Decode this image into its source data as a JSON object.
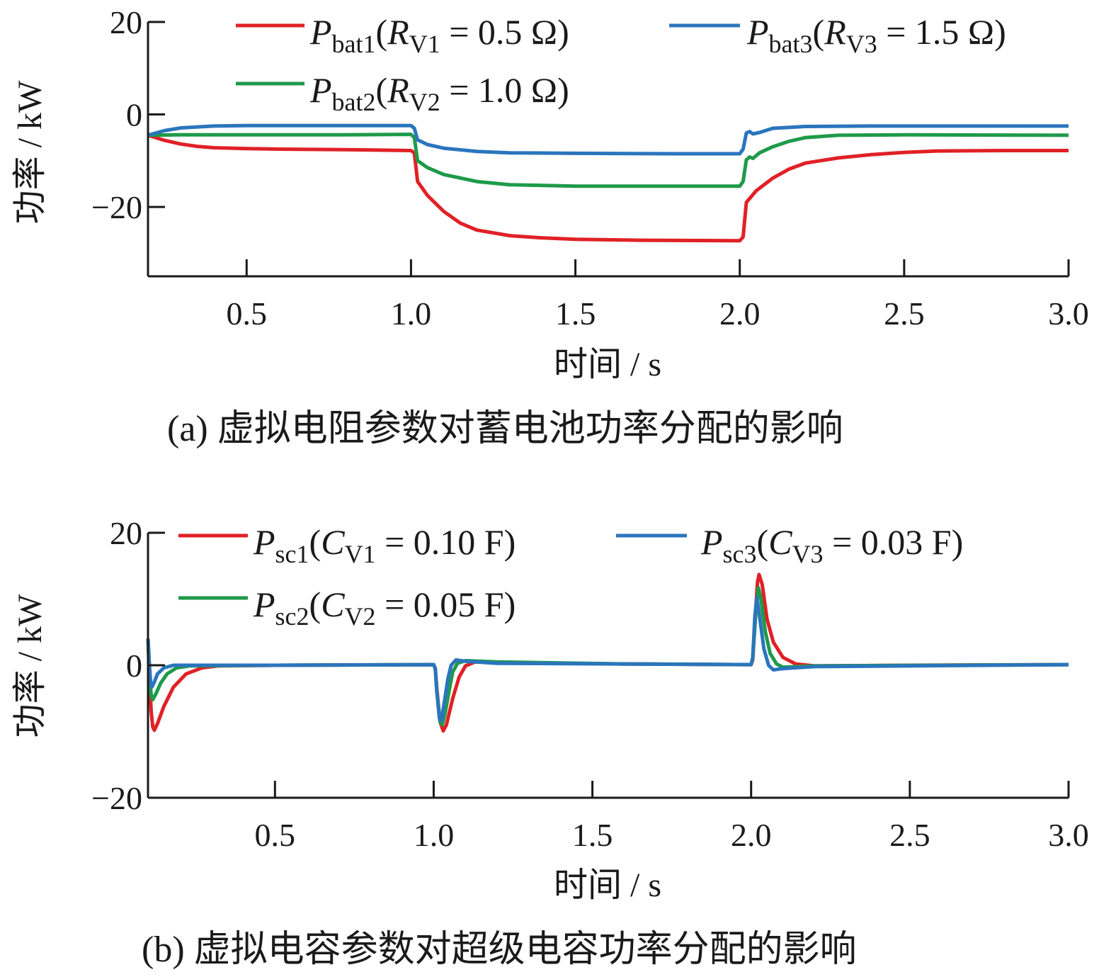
{
  "chart_data": [
    {
      "type": "line",
      "caption": "(a)  虚拟电阻参数对蓄电池功率分配的影响",
      "xlabel": "时间 / s",
      "ylabel": "功率 / kW",
      "xlim": [
        0.2,
        3.0
      ],
      "ylim": [
        -35,
        20
      ],
      "x_ticks": [
        0.5,
        1.0,
        1.5,
        2.0,
        2.5,
        3.0
      ],
      "x_tick_labels": [
        "0.5",
        "1.0",
        "1.5",
        "2.0",
        "2.5",
        "3.0"
      ],
      "y_ticks": [
        20,
        0,
        -20
      ],
      "y_tick_labels": [
        "20",
        "0",
        "−20"
      ],
      "legend_position": "top",
      "series": [
        {
          "name": "P_bat1(R_V1 = 0.5 Ω)",
          "legend": {
            "main": "P",
            "sub": "bat1",
            "open": "(R",
            "sub2": "V1",
            "rest": " = 0.5 Ω)"
          },
          "color": "#e02126",
          "points": [
            [
              0.2,
              -4.5
            ],
            [
              0.25,
              -5.6
            ],
            [
              0.3,
              -6.4
            ],
            [
              0.35,
              -6.9
            ],
            [
              0.4,
              -7.2
            ],
            [
              0.5,
              -7.4
            ],
            [
              0.6,
              -7.5
            ],
            [
              0.8,
              -7.6
            ],
            [
              1.0,
              -7.8
            ],
            [
              1.01,
              -8.3
            ],
            [
              1.02,
              -14.5
            ],
            [
              1.05,
              -17.5
            ],
            [
              1.1,
              -21.0
            ],
            [
              1.15,
              -23.5
            ],
            [
              1.2,
              -25.0
            ],
            [
              1.3,
              -26.2
            ],
            [
              1.4,
              -26.7
            ],
            [
              1.5,
              -27.0
            ],
            [
              1.7,
              -27.2
            ],
            [
              2.0,
              -27.3
            ],
            [
              2.01,
              -26.5
            ],
            [
              2.02,
              -19.0
            ],
            [
              2.05,
              -16.5
            ],
            [
              2.1,
              -13.8
            ],
            [
              2.15,
              -11.8
            ],
            [
              2.2,
              -10.5
            ],
            [
              2.3,
              -9.4
            ],
            [
              2.4,
              -8.7
            ],
            [
              2.5,
              -8.2
            ],
            [
              2.6,
              -7.9
            ],
            [
              2.8,
              -7.8
            ],
            [
              3.0,
              -7.8
            ]
          ]
        },
        {
          "name": "P_bat2(R_V2 = 1.0 Ω)",
          "legend": {
            "main": "P",
            "sub": "bat2",
            "open": "(R",
            "sub2": "V2",
            "rest": " = 1.0 Ω)"
          },
          "color": "#1e9a4a",
          "points": [
            [
              0.2,
              -4.5
            ],
            [
              0.3,
              -4.4
            ],
            [
              0.5,
              -4.4
            ],
            [
              0.8,
              -4.4
            ],
            [
              1.0,
              -4.3
            ],
            [
              1.01,
              -5.0
            ],
            [
              1.02,
              -10.0
            ],
            [
              1.05,
              -11.5
            ],
            [
              1.1,
              -13.0
            ],
            [
              1.2,
              -14.5
            ],
            [
              1.3,
              -15.2
            ],
            [
              1.5,
              -15.5
            ],
            [
              1.8,
              -15.5
            ],
            [
              2.0,
              -15.5
            ],
            [
              2.01,
              -14.5
            ],
            [
              2.02,
              -9.8
            ],
            [
              2.03,
              -9.2
            ],
            [
              2.04,
              -9.5
            ],
            [
              2.06,
              -8.3
            ],
            [
              2.1,
              -7.0
            ],
            [
              2.15,
              -5.8
            ],
            [
              2.2,
              -5.0
            ],
            [
              2.3,
              -4.5
            ],
            [
              2.5,
              -4.4
            ],
            [
              3.0,
              -4.5
            ]
          ]
        },
        {
          "name": "P_bat3(R_V3 = 1.5 Ω)",
          "legend": {
            "main": "P",
            "sub": "bat3",
            "open": "(R",
            "sub2": "V3",
            "rest": " = 1.5 Ω)"
          },
          "color": "#2a75bd",
          "points": [
            [
              0.2,
              -4.5
            ],
            [
              0.25,
              -3.5
            ],
            [
              0.3,
              -2.9
            ],
            [
              0.4,
              -2.5
            ],
            [
              0.5,
              -2.4
            ],
            [
              0.8,
              -2.4
            ],
            [
              1.0,
              -2.4
            ],
            [
              1.01,
              -3.0
            ],
            [
              1.02,
              -5.5
            ],
            [
              1.05,
              -6.5
            ],
            [
              1.1,
              -7.3
            ],
            [
              1.2,
              -8.0
            ],
            [
              1.3,
              -8.3
            ],
            [
              1.5,
              -8.4
            ],
            [
              1.8,
              -8.5
            ],
            [
              2.0,
              -8.5
            ],
            [
              2.01,
              -7.5
            ],
            [
              2.02,
              -4.0
            ],
            [
              2.03,
              -3.7
            ],
            [
              2.04,
              -4.2
            ],
            [
              2.06,
              -3.9
            ],
            [
              2.1,
              -3.0
            ],
            [
              2.2,
              -2.6
            ],
            [
              2.4,
              -2.5
            ],
            [
              3.0,
              -2.5
            ]
          ]
        }
      ]
    },
    {
      "type": "line",
      "caption": "(b)  虚拟电容参数对超级电容功率分配的影响",
      "xlabel": "时间 / s",
      "ylabel": "功率 / kW",
      "xlim": [
        0.1,
        3.0
      ],
      "ylim": [
        -20,
        20
      ],
      "x_ticks": [
        0.5,
        1.0,
        1.5,
        2.0,
        2.5,
        3.0
      ],
      "x_tick_labels": [
        "0.5",
        "1.0",
        "1.5",
        "2.0",
        "2.5",
        "3.0"
      ],
      "y_ticks": [
        20,
        0,
        -20
      ],
      "y_tick_labels": [
        "20",
        "0",
        "−20"
      ],
      "legend_position": "top",
      "series": [
        {
          "name": "P_sc1(C_V1 = 0.10 F)",
          "legend": {
            "main": "P",
            "sub": "sc1",
            "open": "(C",
            "sub2": "V1",
            "rest": " = 0.10 F)"
          },
          "color": "#e02126",
          "points": [
            [
              0.1,
              4.0
            ],
            [
              0.105,
              -2.0
            ],
            [
              0.11,
              -7.0
            ],
            [
              0.115,
              -9.3
            ],
            [
              0.12,
              -9.8
            ],
            [
              0.13,
              -8.8
            ],
            [
              0.15,
              -6.2
            ],
            [
              0.18,
              -3.3
            ],
            [
              0.22,
              -1.3
            ],
            [
              0.27,
              -0.4
            ],
            [
              0.32,
              -0.1
            ],
            [
              0.5,
              0.0
            ],
            [
              1.0,
              0.1
            ],
            [
              1.005,
              -0.5
            ],
            [
              1.01,
              -3.5
            ],
            [
              1.02,
              -8.5
            ],
            [
              1.03,
              -9.9
            ],
            [
              1.04,
              -9.0
            ],
            [
              1.06,
              -5.0
            ],
            [
              1.08,
              -1.8
            ],
            [
              1.1,
              -0.1
            ],
            [
              1.13,
              0.5
            ],
            [
              1.2,
              0.4
            ],
            [
              1.6,
              0.2
            ],
            [
              2.0,
              0.1
            ],
            [
              2.005,
              0.8
            ],
            [
              2.01,
              5.0
            ],
            [
              2.02,
              12.5
            ],
            [
              2.025,
              13.7
            ],
            [
              2.035,
              12.2
            ],
            [
              2.05,
              7.0
            ],
            [
              2.07,
              3.5
            ],
            [
              2.1,
              1.2
            ],
            [
              2.14,
              0.2
            ],
            [
              2.2,
              -0.1
            ],
            [
              2.5,
              0.0
            ],
            [
              3.0,
              0.1
            ]
          ]
        },
        {
          "name": "P_sc2(C_V2 = 0.05 F)",
          "legend": {
            "main": "P",
            "sub": "sc2",
            "open": "(C",
            "sub2": "V2",
            "rest": " = 0.05 F)"
          },
          "color": "#1e9a4a",
          "points": [
            [
              0.1,
              4.0
            ],
            [
              0.105,
              -1.5
            ],
            [
              0.11,
              -4.5
            ],
            [
              0.115,
              -5.2
            ],
            [
              0.125,
              -4.3
            ],
            [
              0.14,
              -2.7
            ],
            [
              0.16,
              -1.3
            ],
            [
              0.19,
              -0.4
            ],
            [
              0.23,
              -0.1
            ],
            [
              0.5,
              0.0
            ],
            [
              1.0,
              0.1
            ],
            [
              1.005,
              -0.5
            ],
            [
              1.01,
              -4.0
            ],
            [
              1.02,
              -8.5
            ],
            [
              1.027,
              -9.0
            ],
            [
              1.035,
              -7.5
            ],
            [
              1.05,
              -3.5
            ],
            [
              1.06,
              -1.0
            ],
            [
              1.075,
              0.3
            ],
            [
              1.1,
              0.7
            ],
            [
              1.2,
              0.5
            ],
            [
              1.6,
              0.2
            ],
            [
              2.0,
              0.1
            ],
            [
              2.005,
              1.0
            ],
            [
              2.015,
              8.0
            ],
            [
              2.023,
              11.7
            ],
            [
              2.03,
              10.3
            ],
            [
              2.045,
              5.0
            ],
            [
              2.06,
              1.8
            ],
            [
              2.08,
              0.2
            ],
            [
              2.1,
              -0.3
            ],
            [
              2.2,
              -0.1
            ],
            [
              3.0,
              0.1
            ]
          ]
        },
        {
          "name": "P_sc3(C_V3 = 0.03 F)",
          "legend": {
            "main": "P",
            "sub": "sc3",
            "open": "(C",
            "sub2": "V3",
            "rest": " = 0.03 F)"
          },
          "color": "#2a75bd",
          "points": [
            [
              0.1,
              4.0
            ],
            [
              0.104,
              0.5
            ],
            [
              0.108,
              -2.5
            ],
            [
              0.112,
              -3.3
            ],
            [
              0.12,
              -2.5
            ],
            [
              0.13,
              -1.3
            ],
            [
              0.15,
              -0.4
            ],
            [
              0.18,
              0.0
            ],
            [
              0.5,
              0.0
            ],
            [
              1.0,
              0.1
            ],
            [
              1.005,
              -0.5
            ],
            [
              1.01,
              -4.0
            ],
            [
              1.018,
              -8.0
            ],
            [
              1.024,
              -8.4
            ],
            [
              1.032,
              -6.0
            ],
            [
              1.045,
              -2.0
            ],
            [
              1.055,
              0.0
            ],
            [
              1.07,
              0.8
            ],
            [
              1.1,
              0.6
            ],
            [
              1.2,
              0.3
            ],
            [
              2.0,
              0.1
            ],
            [
              2.005,
              1.2
            ],
            [
              2.012,
              7.5
            ],
            [
              2.018,
              10.2
            ],
            [
              2.025,
              8.0
            ],
            [
              2.04,
              2.5
            ],
            [
              2.055,
              0.0
            ],
            [
              2.07,
              -0.7
            ],
            [
              2.1,
              -0.5
            ],
            [
              2.2,
              -0.2
            ],
            [
              3.0,
              0.1
            ]
          ]
        }
      ]
    }
  ]
}
